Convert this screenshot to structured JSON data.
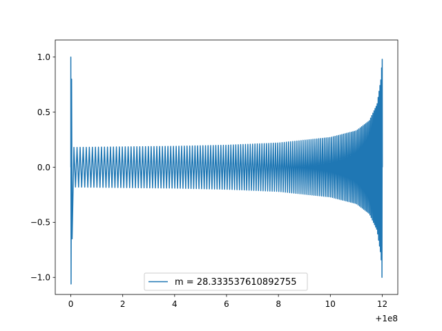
{
  "chart_data": {
    "type": "line",
    "title": "",
    "xlabel": "",
    "ylabel": "",
    "x_offset_label": "+1e8",
    "xlim": [
      -0.6,
      12.6
    ],
    "ylim": [
      -1.155,
      1.155
    ],
    "x_ticks": [
      0,
      2,
      4,
      6,
      8,
      10,
      12
    ],
    "x_tick_labels": [
      "0",
      "2",
      "4",
      "6",
      "8",
      "10",
      "12"
    ],
    "y_ticks": [
      -1.0,
      -0.5,
      0.0,
      0.5,
      1.0
    ],
    "y_tick_labels": [
      "−1.0",
      "−0.5",
      "0.0",
      "0.5",
      "1.0"
    ],
    "grid": false,
    "legend_position": "lower center",
    "series": [
      {
        "name": "m = 28.333537610892755",
        "color": "#1f77b4",
        "x_start": 0.0,
        "x_end": 12.0,
        "start_spike": {
          "x": 0.0,
          "max": 1.0,
          "min": -1.06
        },
        "end_peak": {
          "x": 12.0,
          "max": 0.98,
          "min": -1.0
        },
        "envelope": [
          {
            "x": 0.2,
            "amp": 0.18
          },
          {
            "x": 2,
            "amp": 0.185
          },
          {
            "x": 4,
            "amp": 0.19
          },
          {
            "x": 6,
            "amp": 0.2
          },
          {
            "x": 8,
            "amp": 0.22
          },
          {
            "x": 10,
            "amp": 0.27
          },
          {
            "x": 11,
            "amp": 0.33
          },
          {
            "x": 11.5,
            "amp": 0.42
          },
          {
            "x": 11.8,
            "amp": 0.57
          },
          {
            "x": 11.95,
            "amp": 0.8
          },
          {
            "x": 12.0,
            "amp": 1.0
          }
        ]
      }
    ]
  }
}
